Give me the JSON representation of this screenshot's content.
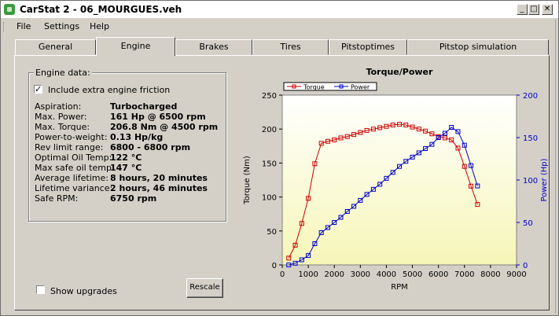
{
  "window": {
    "title": "CarStat 2 - 06_MOURGUES.veh"
  },
  "title_buttons": {
    "minimize": "_",
    "maximize": "□",
    "close": "✕"
  },
  "menu": [
    {
      "label": "File"
    },
    {
      "label": "Settings"
    },
    {
      "label": "Help"
    }
  ],
  "tabs": [
    {
      "label": "General",
      "active": false
    },
    {
      "label": "Engine",
      "active": true
    },
    {
      "label": "Brakes",
      "active": false
    },
    {
      "label": "Tires",
      "active": false
    },
    {
      "label": "Pitstoptimes",
      "active": false
    },
    {
      "label": "Pitstop simulation",
      "active": false
    }
  ],
  "engine": {
    "group_title": "Engine data:",
    "extra_friction": {
      "label": "Include extra engine friction",
      "checked": true
    },
    "rows": [
      {
        "label": "Aspiration:",
        "value": "Turbocharged"
      },
      {
        "label": "Max. Power:",
        "value": "161 Hp @ 6500 rpm"
      },
      {
        "label": "Max. Torque:",
        "value": "206.8 Nm @ 4500 rpm"
      },
      {
        "label": "Power-to-weight:",
        "value": "0.13 Hp/kg"
      },
      {
        "label": "Rev limit range:",
        "value": "6800 - 6800 rpm"
      },
      {
        "label": "Optimal Oil Temp:",
        "value": "122 °C"
      },
      {
        "label": "Max safe oil temp:",
        "value": "147 °C"
      },
      {
        "label": "Average lifetime:",
        "value": "8 hours, 20 minutes"
      },
      {
        "label": "Lifetime variance:",
        "value": "2 hours, 46 minutes"
      },
      {
        "label": "Safe RPM:",
        "value": "6750 rpm"
      }
    ]
  },
  "show_upgrades": {
    "label": "Show upgrades",
    "checked": false
  },
  "rescale_button": {
    "label": "Rescale"
  },
  "colors": {
    "torque": "#cc0000",
    "power": "#0000cc",
    "plot_top": "#ffffff",
    "plot_bottom": "#f6f6b8"
  },
  "chart_data": {
    "type": "line",
    "title": "Torque/Power",
    "xlabel": "RPM",
    "ylabel": "Torque (Nm)",
    "y2label": "Power (Hp)",
    "xlim": [
      0,
      9000
    ],
    "ylim": [
      0,
      250
    ],
    "y2lim": [
      0,
      200
    ],
    "xticks": [
      0,
      1000,
      2000,
      3000,
      4000,
      5000,
      6000,
      7000,
      8000,
      9000
    ],
    "yticks": [
      0,
      50,
      100,
      150,
      200,
      250
    ],
    "y2ticks": [
      0,
      50,
      100,
      150,
      200
    ],
    "legend_position": "top-left",
    "series": [
      {
        "name": "Torque",
        "axis": "left",
        "x": [
          250,
          500,
          750,
          1000,
          1250,
          1500,
          1750,
          2000,
          2250,
          2500,
          2750,
          3000,
          3250,
          3500,
          3750,
          4000,
          4250,
          4500,
          4750,
          5000,
          5250,
          5500,
          5750,
          6000,
          6250,
          6500,
          6750,
          7000,
          7250,
          7500
        ],
        "values": [
          10,
          29,
          61,
          98,
          149,
          179,
          182,
          184,
          187,
          189,
          192,
          195,
          198,
          200,
          202,
          204,
          206,
          207,
          206,
          203,
          200,
          197,
          193,
          189,
          187,
          184,
          172,
          145,
          116,
          89
        ]
      },
      {
        "name": "Power",
        "axis": "right",
        "x": [
          250,
          500,
          750,
          1000,
          1250,
          1500,
          1750,
          2000,
          2250,
          2500,
          2750,
          3000,
          3250,
          3500,
          3750,
          4000,
          4250,
          4500,
          4750,
          5000,
          5250,
          5500,
          5750,
          6000,
          6250,
          6500,
          6750,
          7000,
          7250,
          7500
        ],
        "values": [
          0,
          2,
          6,
          11,
          25,
          38,
          44,
          50,
          56,
          63,
          69,
          76,
          83,
          89,
          95,
          102,
          109,
          116,
          122,
          127,
          132,
          137,
          142,
          150,
          155,
          162,
          157,
          141,
          117,
          93
        ]
      }
    ]
  }
}
